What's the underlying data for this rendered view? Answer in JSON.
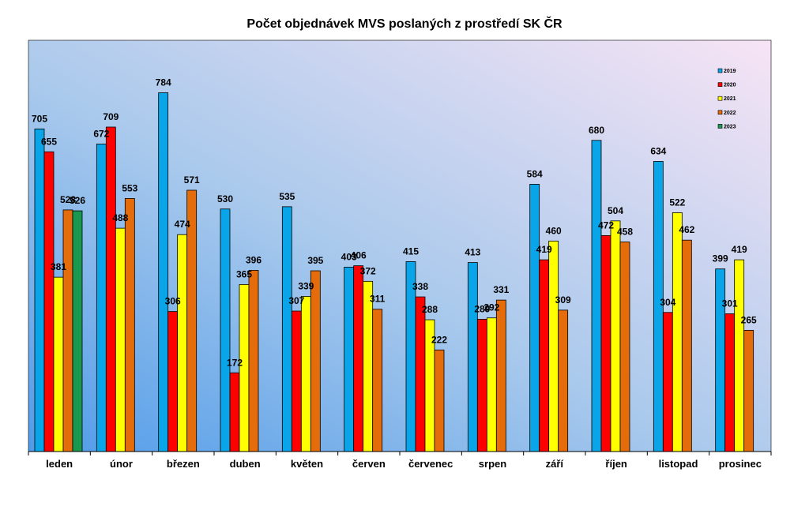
{
  "chart_data": {
    "type": "bar",
    "title": "Počet objednávek MVS poslaných z prostředí SK ČR",
    "xlabel": "",
    "ylabel": "",
    "ylim": [
      0,
      840
    ],
    "grid": false,
    "legend_position": "top-right",
    "categories": [
      "leden",
      "únor",
      "březen",
      "duben",
      "květen",
      "červen",
      "červenec",
      "srpen",
      "září",
      "říjen",
      "listopad",
      "prosinec"
    ],
    "series": [
      {
        "name": "2019",
        "color": "#0aa5e8",
        "values": [
          705,
          672,
          784,
          530,
          535,
          403,
          415,
          413,
          584,
          680,
          634,
          399
        ]
      },
      {
        "name": "2020",
        "color": "#ff0000",
        "values": [
          655,
          709,
          306,
          172,
          307,
          406,
          338,
          289,
          419,
          472,
          304,
          301
        ]
      },
      {
        "name": "2021",
        "color": "#ffff00",
        "values": [
          381,
          488,
          474,
          365,
          339,
          372,
          288,
          292,
          460,
          504,
          522,
          419
        ]
      },
      {
        "name": "2022",
        "color": "#e46c0a",
        "values": [
          528,
          553,
          571,
          396,
          395,
          311,
          222,
          331,
          309,
          458,
          462,
          265
        ]
      },
      {
        "name": "2023",
        "color": "#1a9850",
        "values": [
          526,
          null,
          null,
          null,
          null,
          null,
          null,
          null,
          null,
          null,
          null,
          null
        ]
      }
    ]
  }
}
